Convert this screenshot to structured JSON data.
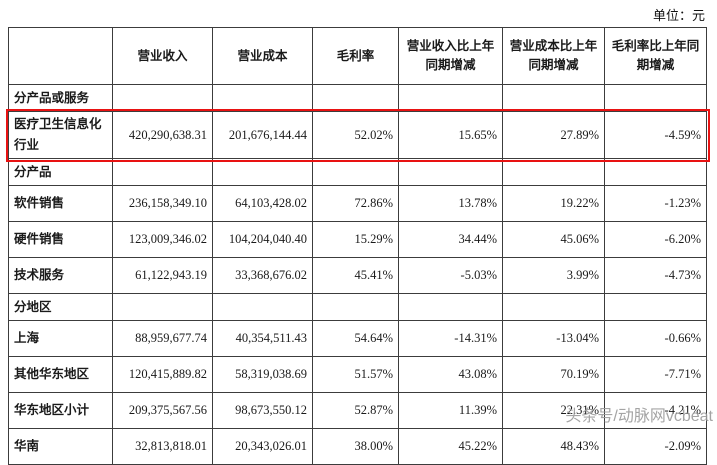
{
  "unit_label": "单位：元",
  "watermark": "头条号/动脉网vcbeat",
  "table": {
    "headers": [
      "",
      "营业收入",
      "营业成本",
      "毛利率",
      "营业收入比上年同期增减",
      "营业成本比上年同期增减",
      "毛利率比上年同期增减"
    ],
    "rows": [
      {
        "type": "section",
        "label": "分产品或服务",
        "values": [
          "",
          "",
          "",
          "",
          "",
          ""
        ]
      },
      {
        "type": "data",
        "highlight": true,
        "label": "医疗卫生信息化行业",
        "values": [
          "420,290,638.31",
          "201,676,144.44",
          "52.02%",
          "15.65%",
          "27.89%",
          "-4.59%"
        ]
      },
      {
        "type": "section",
        "label": "分产品",
        "values": [
          "",
          "",
          "",
          "",
          "",
          ""
        ]
      },
      {
        "type": "data",
        "label": "软件销售",
        "values": [
          "236,158,349.10",
          "64,103,428.02",
          "72.86%",
          "13.78%",
          "19.22%",
          "-1.23%"
        ]
      },
      {
        "type": "data",
        "label": "硬件销售",
        "values": [
          "123,009,346.02",
          "104,204,040.40",
          "15.29%",
          "34.44%",
          "45.06%",
          "-6.20%"
        ]
      },
      {
        "type": "data",
        "label": "技术服务",
        "values": [
          "61,122,943.19",
          "33,368,676.02",
          "45.41%",
          "-5.03%",
          "3.99%",
          "-4.73%"
        ]
      },
      {
        "type": "section",
        "label": "分地区",
        "values": [
          "",
          "",
          "",
          "",
          "",
          ""
        ]
      },
      {
        "type": "data",
        "label": "上海",
        "values": [
          "88,959,677.74",
          "40,354,511.43",
          "54.64%",
          "-14.31%",
          "-13.04%",
          "-0.66%"
        ]
      },
      {
        "type": "data",
        "label": "其他华东地区",
        "values": [
          "120,415,889.82",
          "58,319,038.69",
          "51.57%",
          "43.08%",
          "70.19%",
          "-7.71%"
        ]
      },
      {
        "type": "data",
        "label": "华东地区小计",
        "values": [
          "209,375,567.56",
          "98,673,550.12",
          "52.87%",
          "11.39%",
          "22.31%",
          "-4.21%"
        ]
      },
      {
        "type": "data",
        "label": "华南",
        "values": [
          "32,813,818.01",
          "20,343,026.01",
          "38.00%",
          "45.22%",
          "48.43%",
          "-2.09%"
        ]
      }
    ]
  }
}
